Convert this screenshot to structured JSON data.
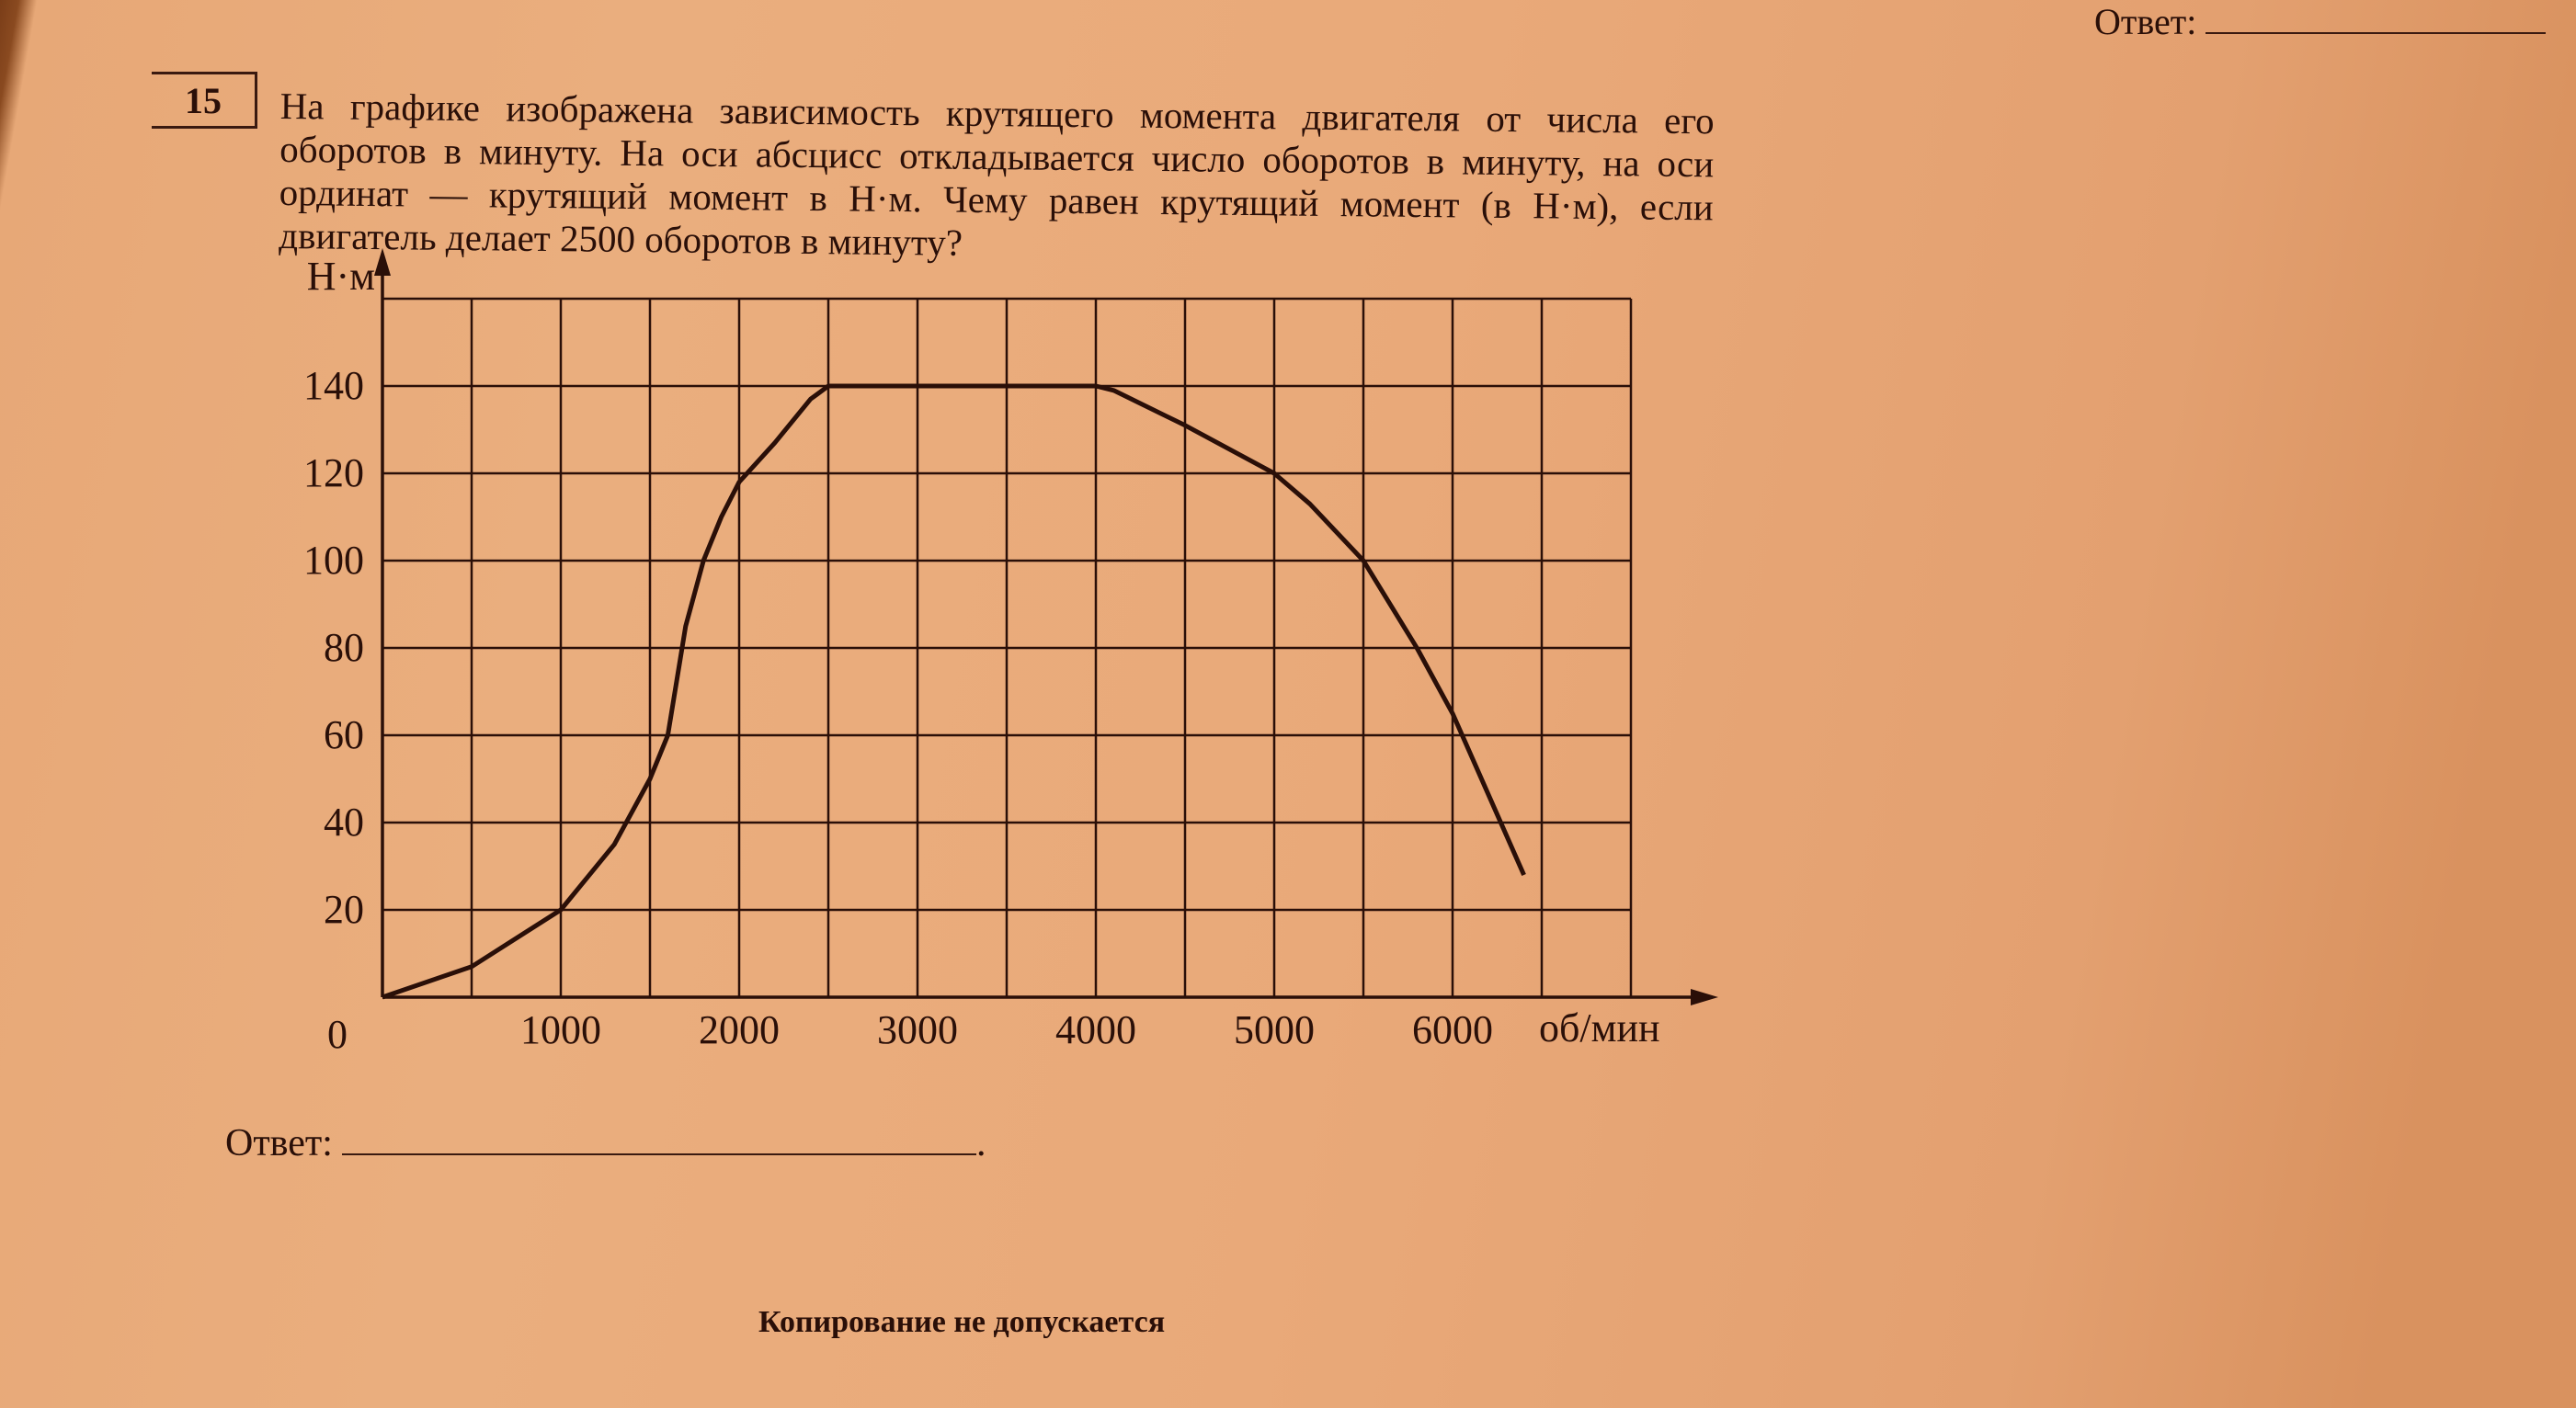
{
  "header": {
    "answer_label": "Ответ:"
  },
  "question": {
    "number": "15",
    "text": "На графике изображена зависимость крутящего момента двигателя от числа его оборотов в минуту. На оси абсцисс откладывается число оборотов в минуту, на оси ординат — крутящий момент в Н·м. Чему равен крутящий момент (в Н·м), если двигатель делает 2500 оборотов в минуту?"
  },
  "chart_data": {
    "type": "line",
    "title": "",
    "xlabel": "об/мин",
    "ylabel": "Н·м",
    "origin_label": "0",
    "xlim": [
      0,
      7000
    ],
    "ylim": [
      0,
      160
    ],
    "x_grid_step": 500,
    "y_grid_step": 20,
    "grid": true,
    "x_ticks": [
      1000,
      2000,
      3000,
      4000,
      5000,
      6000
    ],
    "x_tick_labels": [
      "1000",
      "2000",
      "3000",
      "4000",
      "5000",
      "6000"
    ],
    "y_ticks": [
      20,
      40,
      60,
      80,
      100,
      120,
      140
    ],
    "y_tick_labels": [
      "20",
      "40",
      "60",
      "80",
      "100",
      "120",
      "140"
    ],
    "series": [
      {
        "x": [
          0,
          500,
          1000,
          1300,
          1500,
          1600,
          1700,
          1800,
          1900,
          2000,
          2200,
          2400,
          2500,
          4000,
          4100,
          4500,
          5000,
          5200,
          5500,
          5800,
          6000,
          6400
        ],
        "y": [
          0,
          7,
          20,
          35,
          50,
          60,
          85,
          100,
          110,
          118,
          127,
          137,
          140,
          140,
          139,
          131,
          120,
          113,
          100,
          80,
          65,
          28
        ]
      }
    ],
    "line_color": "#2a0f08"
  },
  "answer": {
    "label": "Ответ:",
    "suffix": "."
  },
  "footer": {
    "text": "Копирование не допускается"
  }
}
